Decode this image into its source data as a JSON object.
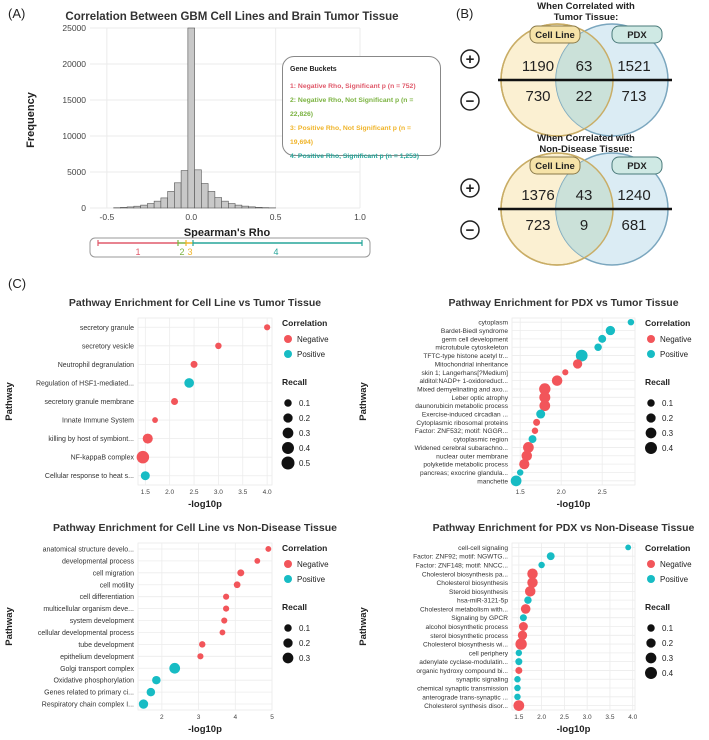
{
  "panel_labels": {
    "a": "(A)",
    "b": "(B)",
    "c": "(C)"
  },
  "legend_gene_buckets": {
    "title": "Gene Buckets",
    "items": [
      {
        "text": "1: Negative Rho, Significant p (n = 752)",
        "color": "#e05a6b"
      },
      {
        "text": "2: Negative Rho, Not Significant p (n = 22,826)",
        "color": "#7cb342"
      },
      {
        "text": "3: Positive Rho, Not Significant p (n = 19,694)",
        "color": "#f0b429"
      },
      {
        "text": "4: Positive Rho, Significant p (n = 1,253)",
        "color": "#26a69a"
      }
    ]
  },
  "bucket_bar": {
    "labels": [
      "1",
      "2",
      "3",
      "4"
    ]
  },
  "venn": {
    "top": {
      "title_line1": "When Correlated with",
      "title_line2": "Tumor Tissue:",
      "left_label": "Cell Line",
      "right_label": "PDX",
      "pos_left": "1190",
      "pos_mid": "63",
      "pos_right": "1521",
      "neg_left": "730",
      "neg_mid": "22",
      "neg_right": "713"
    },
    "bottom": {
      "title_line1": "When Correlated with",
      "title_line2": "Non-Disease Tissue:",
      "left_label": "Cell Line",
      "right_label": "PDX",
      "pos_left": "1376",
      "pos_mid": "43",
      "pos_right": "1240",
      "neg_left": "723",
      "neg_mid": "9",
      "neg_right": "681"
    },
    "plus_symbol": "+",
    "minus_symbol": "−"
  },
  "chart_data": [
    {
      "type": "bar",
      "title": "Correlation Between GBM Cell Lines and Brain Tumor Tissue",
      "xlabel": "Spearman's Rho",
      "ylabel": "Frequency",
      "xlim": [
        -0.6,
        1.0
      ],
      "ylim": [
        0,
        25000
      ],
      "xticks": [
        "-0.5",
        "0.0",
        "0.5",
        "1.0"
      ],
      "yticks": [
        "0",
        "5000",
        "10000",
        "15000",
        "20000",
        "25000"
      ],
      "bins": [
        {
          "x": -0.44,
          "value": 40
        },
        {
          "x": -0.4,
          "value": 80
        },
        {
          "x": -0.36,
          "value": 150
        },
        {
          "x": -0.32,
          "value": 250
        },
        {
          "x": -0.28,
          "value": 400
        },
        {
          "x": -0.24,
          "value": 620
        },
        {
          "x": -0.2,
          "value": 950
        },
        {
          "x": -0.16,
          "value": 1400
        },
        {
          "x": -0.12,
          "value": 2300
        },
        {
          "x": -0.08,
          "value": 3500
        },
        {
          "x": -0.04,
          "value": 5200
        },
        {
          "x": 0.0,
          "value": 25000
        },
        {
          "x": 0.04,
          "value": 5300
        },
        {
          "x": 0.08,
          "value": 3400
        },
        {
          "x": 0.12,
          "value": 2300
        },
        {
          "x": 0.16,
          "value": 1450
        },
        {
          "x": 0.2,
          "value": 950
        },
        {
          "x": 0.24,
          "value": 620
        },
        {
          "x": 0.28,
          "value": 400
        },
        {
          "x": 0.32,
          "value": 260
        },
        {
          "x": 0.36,
          "value": 160
        },
        {
          "x": 0.4,
          "value": 90
        },
        {
          "x": 0.44,
          "value": 50
        },
        {
          "x": 0.48,
          "value": 25
        }
      ]
    },
    {
      "type": "scatter",
      "id": "c1",
      "title": "Pathway Enrichment for Cell Line vs Tumor Tissue",
      "xlabel": "-log10p",
      "ylabel": "Pathway",
      "xlim": [
        1.35,
        4.1
      ],
      "xticks": [
        1.5,
        2.0,
        2.5,
        3.0,
        3.5,
        4.0
      ],
      "pathways": [
        "secretory granule",
        "secretory vesicle",
        "Neutrophil degranulation",
        "Regulation of HSF1-mediated...",
        "secretory granule membrane",
        "Innate Immune System",
        "killing by host of symbiont...",
        "NF-kappaB complex",
        "Cellular response to heat s..."
      ],
      "x": [
        4.0,
        3.0,
        2.5,
        2.4,
        2.1,
        1.7,
        1.55,
        1.45,
        1.5
      ],
      "correlation": [
        "Negative",
        "Negative",
        "Negative",
        "Positive",
        "Negative",
        "Negative",
        "Negative",
        "Negative",
        "Positive"
      ],
      "recall": [
        0.05,
        0.06,
        0.08,
        0.22,
        0.08,
        0.04,
        0.25,
        0.45,
        0.18
      ],
      "legend_recall": [
        "0.1",
        "0.2",
        "0.3",
        "0.4",
        "0.5"
      ]
    },
    {
      "type": "scatter",
      "id": "c2",
      "title": "Pathway Enrichment for PDX vs Tumor Tissue",
      "xlabel": "-log10p",
      "ylabel": "Pathway",
      "xlim": [
        1.4,
        2.9
      ],
      "xticks": [
        1.5,
        2.0,
        2.5
      ],
      "pathways": [
        "cytoplasm",
        "Bardet-Biedl syndrome",
        "germ cell development",
        "microtubule cytoskeleton",
        "TFTC-type histone acetyl tr...",
        "Mitochondrial inheritance",
        "skin 1; Langerhans[?Medium]",
        "alditol:NADP+ 1-oxidoreduct...",
        "Mixed demyelinating and axo...",
        "Leber optic atrophy",
        "daunorubicin metabolic process",
        "Exercise-induced circadian ...",
        "Cytoplasmic ribosomal proteins",
        "Factor: ZNF532; motif: NGGR...",
        "cytoplasmic region",
        "Widened cerebral subarachno...",
        "nuclear outer membrane",
        "polyketide metabolic process",
        "pancreas; exocrine glandula...",
        "manchette"
      ],
      "x": [
        2.85,
        2.6,
        2.5,
        2.45,
        2.25,
        2.2,
        2.05,
        1.95,
        1.8,
        1.8,
        1.8,
        1.75,
        1.7,
        1.68,
        1.65,
        1.6,
        1.58,
        1.55,
        1.5,
        1.45
      ],
      "correlation": [
        "Positive",
        "Positive",
        "Positive",
        "Positive",
        "Positive",
        "Negative",
        "Negative",
        "Negative",
        "Negative",
        "Negative",
        "Negative",
        "Positive",
        "Negative",
        "Negative",
        "Positive",
        "Negative",
        "Negative",
        "Negative",
        "Positive",
        "Positive"
      ],
      "recall": [
        0.06,
        0.2,
        0.12,
        0.1,
        0.38,
        0.2,
        0.05,
        0.28,
        0.35,
        0.32,
        0.3,
        0.18,
        0.08,
        0.06,
        0.12,
        0.3,
        0.28,
        0.26,
        0.06,
        0.3
      ],
      "legend_recall": [
        "0.1",
        "0.2",
        "0.3",
        "0.4"
      ]
    },
    {
      "type": "scatter",
      "id": "c3",
      "title": "Pathway Enrichment for Cell Line vs Non-Disease Tissue",
      "xlabel": "-log10p",
      "ylabel": "Pathway",
      "xlim": [
        1.35,
        5.0
      ],
      "xticks": [
        2,
        3,
        4,
        5
      ],
      "pathways": [
        "anatomical structure develo...",
        "developmental process",
        "cell migration",
        "cell motility",
        "cell differentiation",
        "multicellular organism deve...",
        "system development",
        "cellular developmental process",
        "tube development",
        "epithelium development",
        "Golgi transport complex",
        "Oxidative phosphorylation",
        "Genes related to primary ci...",
        "Respiratory chain complex I..."
      ],
      "x": [
        4.9,
        4.6,
        4.15,
        4.05,
        3.75,
        3.75,
        3.7,
        3.65,
        3.1,
        3.05,
        2.35,
        1.85,
        1.7,
        1.5
      ],
      "correlation": [
        "Negative",
        "Negative",
        "Negative",
        "Negative",
        "Negative",
        "Negative",
        "Negative",
        "Negative",
        "Negative",
        "Negative",
        "Positive",
        "Positive",
        "Positive",
        "Positive"
      ],
      "recall": [
        0.04,
        0.04,
        0.08,
        0.07,
        0.05,
        0.05,
        0.05,
        0.04,
        0.06,
        0.05,
        0.3,
        0.15,
        0.15,
        0.2
      ],
      "legend_recall": [
        "0.1",
        "0.2",
        "0.3"
      ]
    },
    {
      "type": "scatter",
      "id": "c4",
      "title": "Pathway Enrichment for PDX vs Non-Disease Tissue",
      "xlabel": "-log10p",
      "ylabel": "Pathway",
      "xlim": [
        1.35,
        4.05
      ],
      "xticks": [
        1.5,
        2.0,
        2.5,
        3.0,
        3.5,
        4.0
      ],
      "pathways": [
        "cell-cell signaling",
        "Factor: ZNF92; motif: NGWTG...",
        "Factor: ZNF148; motif: NNCC...",
        "Cholesterol biosynthesis pa...",
        "Cholesterol biosynthesis",
        "Steroid biosynthesis",
        "hsa-miR-3121-5p",
        "Cholesterol metabolism with...",
        "Signaling by GPCR",
        "alcohol biosynthetic process",
        "sterol biosynthetic process",
        "Cholesterol biosynthesis wi...",
        "cell periphery",
        "adenylate cyclase-modulatin...",
        "organic hydroxy compound bi...",
        "synaptic signaling",
        "chemical synaptic transmission",
        "anterograde trans-synaptic ...",
        "Cholesterol synthesis disor..."
      ],
      "x": [
        3.9,
        2.2,
        2.0,
        1.8,
        1.8,
        1.75,
        1.7,
        1.65,
        1.6,
        1.6,
        1.58,
        1.55,
        1.5,
        1.5,
        1.5,
        1.47,
        1.47,
        1.47,
        1.5
      ],
      "correlation": [
        "Positive",
        "Positive",
        "Positive",
        "Negative",
        "Negative",
        "Negative",
        "Positive",
        "Negative",
        "Positive",
        "Negative",
        "Negative",
        "Negative",
        "Positive",
        "Positive",
        "Negative",
        "Positive",
        "Positive",
        "Positive",
        "Negative"
      ],
      "recall": [
        0.04,
        0.12,
        0.06,
        0.28,
        0.28,
        0.28,
        0.1,
        0.22,
        0.08,
        0.18,
        0.2,
        0.35,
        0.06,
        0.08,
        0.08,
        0.06,
        0.06,
        0.06,
        0.3
      ],
      "legend_recall": [
        "0.1",
        "0.2",
        "0.3",
        "0.4"
      ]
    }
  ],
  "scatter_legend": {
    "correlation_title": "Correlation",
    "negative_label": "Negative",
    "positive_label": "Positive",
    "recall_title": "Recall",
    "negative_color": "#f2555a",
    "positive_color": "#17bcc4"
  }
}
